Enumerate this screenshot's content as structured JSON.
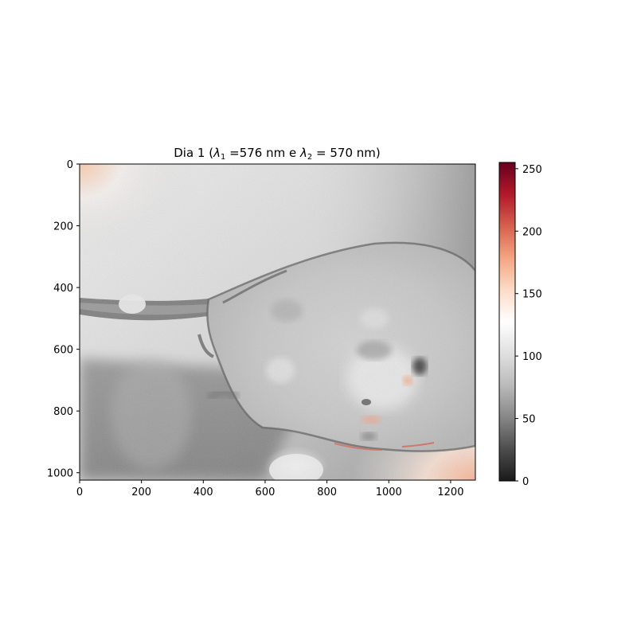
{
  "figure": {
    "title_prefix": "Dia 1 (",
    "title_lambda1_sym": "λ",
    "title_lambda1_sub": "1",
    "title_lambda1_val": " =576 nm e ",
    "title_lambda2_sym": "λ",
    "title_lambda2_sub": "2",
    "title_lambda2_val": " = 570 nm)",
    "image_kind": "grayscale microscopy of a spherical body on a stalk with red-highlighted high-intensity regions",
    "x_ticks": [
      "0",
      "200",
      "400",
      "600",
      "800",
      "1000",
      "1200"
    ],
    "y_ticks": [
      "0",
      "200",
      "400",
      "600",
      "800",
      "1000"
    ],
    "x_range": [
      0,
      1280
    ],
    "y_range": [
      0,
      1024
    ],
    "colorbar": {
      "ticks": [
        "0",
        "50",
        "100",
        "150",
        "200",
        "250"
      ],
      "range": [
        0,
        255
      ],
      "colormap": "RdGy_r",
      "stops": [
        "#1a1a1a",
        "#4d4d4d",
        "#878787",
        "#bababa",
        "#e0e0e0",
        "#ffffff",
        "#fddbc7",
        "#f4a582",
        "#d6604d",
        "#b2182b",
        "#67001f"
      ]
    }
  }
}
